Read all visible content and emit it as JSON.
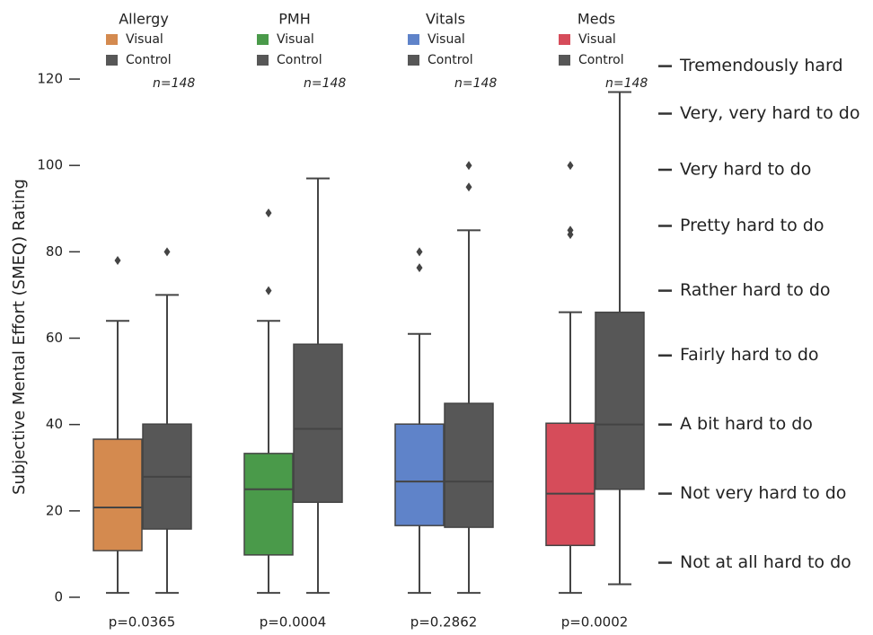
{
  "chart_data": {
    "type": "box",
    "y_label": "Subjective Mental Effort (SMEQ) Rating",
    "categories": [
      "Allergy",
      "PMH",
      "Vitals",
      "Meds"
    ],
    "n_labels": [
      "n=148",
      "n=148",
      "n=148",
      "n=148"
    ],
    "p_labels": [
      "p=0.0365",
      "p=0.0004",
      "p=0.2862",
      "p=0.0002"
    ],
    "series": [
      {
        "name": "Visual",
        "colors": [
          "#d48a4f",
          "#4a9a4a",
          "#5f83c9",
          "#d64c5a"
        ],
        "boxes": [
          {
            "low": 1,
            "q1": 10.8,
            "median": 20.8,
            "q3": 36.6,
            "high": 64,
            "outliers": [
              78
            ]
          },
          {
            "low": 1,
            "q1": 9.8,
            "median": 25,
            "q3": 33.3,
            "high": 64,
            "outliers": [
              71,
              89
            ]
          },
          {
            "low": 1,
            "q1": 16.6,
            "median": 26.8,
            "q3": 40.1,
            "high": 61,
            "outliers": [
              76.3,
              80
            ]
          },
          {
            "low": 1,
            "q1": 12,
            "median": 24,
            "q3": 40.3,
            "high": 66,
            "outliers": [
              84,
              85,
              100
            ]
          }
        ]
      },
      {
        "name": "Control",
        "colors": [
          "#575757",
          "#575757",
          "#575757",
          "#575757"
        ],
        "boxes": [
          {
            "low": 1,
            "q1": 15.8,
            "median": 27.9,
            "q3": 40.1,
            "high": 70,
            "outliers": [
              80
            ]
          },
          {
            "low": 1,
            "q1": 22,
            "median": 39,
            "q3": 58.6,
            "high": 97,
            "outliers": []
          },
          {
            "low": 1,
            "q1": 16.2,
            "median": 26.8,
            "q3": 44.9,
            "high": 85,
            "outliers": [
              95,
              100
            ]
          },
          {
            "low": 3,
            "q1": 25,
            "median": 40,
            "q3": 66,
            "high": 117,
            "outliers": []
          }
        ]
      }
    ],
    "ylim": [
      -3,
      125
    ],
    "yticks": [
      0,
      20,
      40,
      60,
      80,
      100,
      120
    ],
    "y2lim": [
      -3,
      125
    ],
    "y2ticks": [
      {
        "value": 8,
        "label": "Not at all hard to do"
      },
      {
        "value": 24,
        "label": "Not very hard to do"
      },
      {
        "value": 40,
        "label": "A bit hard to do"
      },
      {
        "value": 56,
        "label": "Fairly hard to do"
      },
      {
        "value": 71,
        "label": "Rather hard to do"
      },
      {
        "value": 86,
        "label": "Pretty hard to do"
      },
      {
        "value": 99,
        "label": "Very hard to do"
      },
      {
        "value": 112,
        "label": "Very, very hard to do"
      },
      {
        "value": 123,
        "label": "Tremendously hard"
      }
    ]
  }
}
